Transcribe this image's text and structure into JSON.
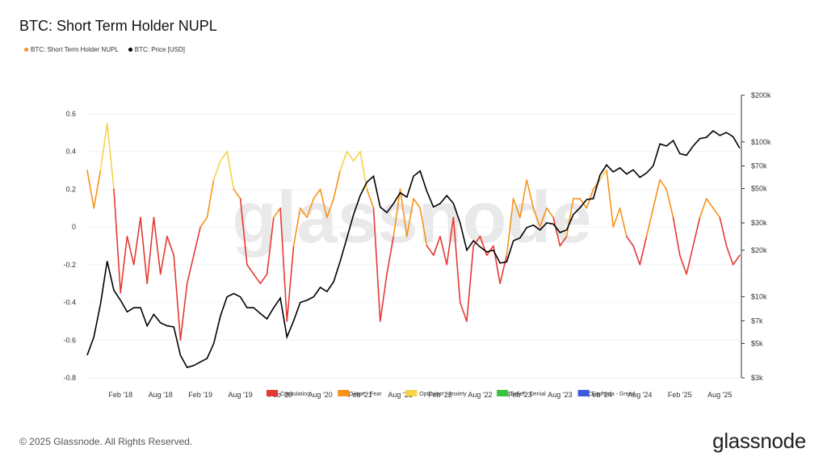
{
  "header": {
    "title": "BTC: Short Term Holder NUPL"
  },
  "legend": [
    {
      "label": "BTC: Short Term Holder NUPL",
      "color": "#f7931a"
    },
    {
      "label": "BTC: Price [USD]",
      "color": "#000000"
    }
  ],
  "footer": {
    "copyright": "© 2025 Glassnode. All Rights Reserved.",
    "logo": "glassnode"
  },
  "watermark": "glassnode",
  "chart_data": {
    "type": "line",
    "title": "BTC: Short Term Holder NUPL",
    "x_ticks": [
      "Feb '18",
      "Aug '18",
      "Feb '19",
      "Aug '19",
      "Feb '20",
      "Aug '20",
      "Feb '21",
      "Aug '21",
      "Feb '22",
      "Aug '22",
      "Feb '23",
      "Aug '23",
      "Feb '24",
      "Aug '24",
      "Feb '25",
      "Aug '25"
    ],
    "y_left_ticks": [
      "0.6",
      "0.4",
      "0.2",
      "0",
      "-0.2",
      "-0.4",
      "-0.6",
      "-0.8"
    ],
    "y_left_range": [
      -0.8,
      0.6
    ],
    "y_right_ticks": [
      "$200k",
      "$100k",
      "$70k",
      "$50k",
      "$30k",
      "$20k",
      "$10k",
      "$7k",
      "$5k",
      "$3k"
    ],
    "y_right_range_usd": [
      3000,
      200000
    ],
    "y_right_scale": "log",
    "zones": [
      {
        "label": "Capitulation",
        "color": "#e53935"
      },
      {
        "label": "Hope - Fear",
        "color": "#f7931a"
      },
      {
        "label": "Optimism - Anxiety",
        "color": "#f5d44a"
      },
      {
        "label": "Belief - Denial",
        "color": "#3cc13b"
      },
      {
        "label": "Euphoria - Greed",
        "color": "#3b5bdb"
      }
    ],
    "series": [
      {
        "name": "BTC: Short Term Holder NUPL",
        "x": [
          "2017-09",
          "2017-10",
          "2017-11",
          "2017-12",
          "2018-01",
          "2018-02",
          "2018-03",
          "2018-04",
          "2018-05",
          "2018-06",
          "2018-07",
          "2018-08",
          "2018-09",
          "2018-10",
          "2018-11",
          "2018-12",
          "2019-01",
          "2019-02",
          "2019-03",
          "2019-04",
          "2019-05",
          "2019-06",
          "2019-07",
          "2019-08",
          "2019-09",
          "2019-10",
          "2019-11",
          "2019-12",
          "2020-01",
          "2020-02",
          "2020-03",
          "2020-04",
          "2020-05",
          "2020-06",
          "2020-07",
          "2020-08",
          "2020-09",
          "2020-10",
          "2020-11",
          "2020-12",
          "2021-01",
          "2021-02",
          "2021-03",
          "2021-04",
          "2021-05",
          "2021-06",
          "2021-07",
          "2021-08",
          "2021-09",
          "2021-10",
          "2021-11",
          "2021-12",
          "2022-01",
          "2022-02",
          "2022-03",
          "2022-04",
          "2022-05",
          "2022-06",
          "2022-07",
          "2022-08",
          "2022-09",
          "2022-10",
          "2022-11",
          "2022-12",
          "2023-01",
          "2023-02",
          "2023-03",
          "2023-04",
          "2023-05",
          "2023-06",
          "2023-07",
          "2023-08",
          "2023-09",
          "2023-10",
          "2023-11",
          "2023-12",
          "2024-01",
          "2024-02",
          "2024-03",
          "2024-04",
          "2024-05",
          "2024-06",
          "2024-07",
          "2024-08",
          "2024-09",
          "2024-10",
          "2024-11",
          "2024-12",
          "2025-01",
          "2025-02",
          "2025-03",
          "2025-04",
          "2025-05",
          "2025-06",
          "2025-07",
          "2025-08",
          "2025-09",
          "2025-10",
          "2025-11"
        ],
        "values": [
          0.3,
          0.1,
          0.3,
          0.55,
          0.2,
          -0.35,
          -0.05,
          -0.2,
          0.05,
          -0.3,
          0.05,
          -0.25,
          -0.05,
          -0.15,
          -0.6,
          -0.3,
          -0.15,
          0.0,
          0.05,
          0.25,
          0.35,
          0.4,
          0.2,
          0.15,
          -0.2,
          -0.25,
          -0.3,
          -0.25,
          0.05,
          0.1,
          -0.5,
          -0.1,
          0.1,
          0.05,
          0.15,
          0.2,
          0.05,
          0.15,
          0.3,
          0.4,
          0.35,
          0.4,
          0.2,
          0.1,
          -0.5,
          -0.25,
          -0.05,
          0.2,
          -0.05,
          0.15,
          0.1,
          -0.1,
          -0.15,
          -0.05,
          -0.2,
          0.05,
          -0.4,
          -0.5,
          -0.1,
          -0.05,
          -0.15,
          -0.1,
          -0.3,
          -0.15,
          0.15,
          0.05,
          0.25,
          0.1,
          0.0,
          0.1,
          0.05,
          -0.1,
          -0.05,
          0.15,
          0.15,
          0.1,
          0.2,
          0.25,
          0.3,
          0.0,
          0.1,
          -0.05,
          -0.1,
          -0.2,
          -0.05,
          0.1,
          0.25,
          0.2,
          0.05,
          -0.15,
          -0.25,
          -0.1,
          0.05,
          0.15,
          0.1,
          0.05,
          -0.1,
          -0.2,
          -0.15
        ]
      },
      {
        "name": "BTC: Price [USD]",
        "x": [
          "2017-09",
          "2017-10",
          "2017-11",
          "2017-12",
          "2018-01",
          "2018-02",
          "2018-03",
          "2018-04",
          "2018-05",
          "2018-06",
          "2018-07",
          "2018-08",
          "2018-09",
          "2018-10",
          "2018-11",
          "2018-12",
          "2019-01",
          "2019-02",
          "2019-03",
          "2019-04",
          "2019-05",
          "2019-06",
          "2019-07",
          "2019-08",
          "2019-09",
          "2019-10",
          "2019-11",
          "2019-12",
          "2020-01",
          "2020-02",
          "2020-03",
          "2020-04",
          "2020-05",
          "2020-06",
          "2020-07",
          "2020-08",
          "2020-09",
          "2020-10",
          "2020-11",
          "2020-12",
          "2021-01",
          "2021-02",
          "2021-03",
          "2021-04",
          "2021-05",
          "2021-06",
          "2021-07",
          "2021-08",
          "2021-09",
          "2021-10",
          "2021-11",
          "2021-12",
          "2022-01",
          "2022-02",
          "2022-03",
          "2022-04",
          "2022-05",
          "2022-06",
          "2022-07",
          "2022-08",
          "2022-09",
          "2022-10",
          "2022-11",
          "2022-12",
          "2023-01",
          "2023-02",
          "2023-03",
          "2023-04",
          "2023-05",
          "2023-06",
          "2023-07",
          "2023-08",
          "2023-09",
          "2023-10",
          "2023-11",
          "2023-12",
          "2024-01",
          "2024-02",
          "2024-03",
          "2024-04",
          "2024-05",
          "2024-06",
          "2024-07",
          "2024-08",
          "2024-09",
          "2024-10",
          "2024-11",
          "2024-12",
          "2025-01",
          "2025-02",
          "2025-03",
          "2025-04",
          "2025-05",
          "2025-06",
          "2025-07",
          "2025-08",
          "2025-09",
          "2025-10",
          "2025-11"
        ],
        "values": [
          4200,
          5500,
          9000,
          17000,
          11000,
          9500,
          8000,
          8500,
          8500,
          6500,
          7700,
          6800,
          6500,
          6400,
          4200,
          3500,
          3600,
          3800,
          4000,
          5000,
          7500,
          10000,
          10500,
          10000,
          8500,
          8500,
          7800,
          7200,
          8500,
          9800,
          5500,
          7000,
          9200,
          9500,
          10000,
          11500,
          10800,
          12500,
          17000,
          24000,
          34000,
          45000,
          55000,
          60000,
          38000,
          35000,
          40000,
          47000,
          44000,
          60000,
          65000,
          48000,
          38000,
          40000,
          45000,
          40000,
          30000,
          20000,
          23000,
          21000,
          19500,
          20000,
          16500,
          16800,
          23000,
          24000,
          28000,
          29000,
          27000,
          30000,
          29500,
          26000,
          27000,
          34000,
          37500,
          42500,
          43000,
          61000,
          71000,
          64000,
          68000,
          62000,
          66000,
          59000,
          63000,
          70000,
          97000,
          94000,
          102000,
          84000,
          82000,
          94000,
          105000,
          107000,
          118000,
          110000,
          115000,
          108000,
          91000
        ]
      }
    ]
  }
}
